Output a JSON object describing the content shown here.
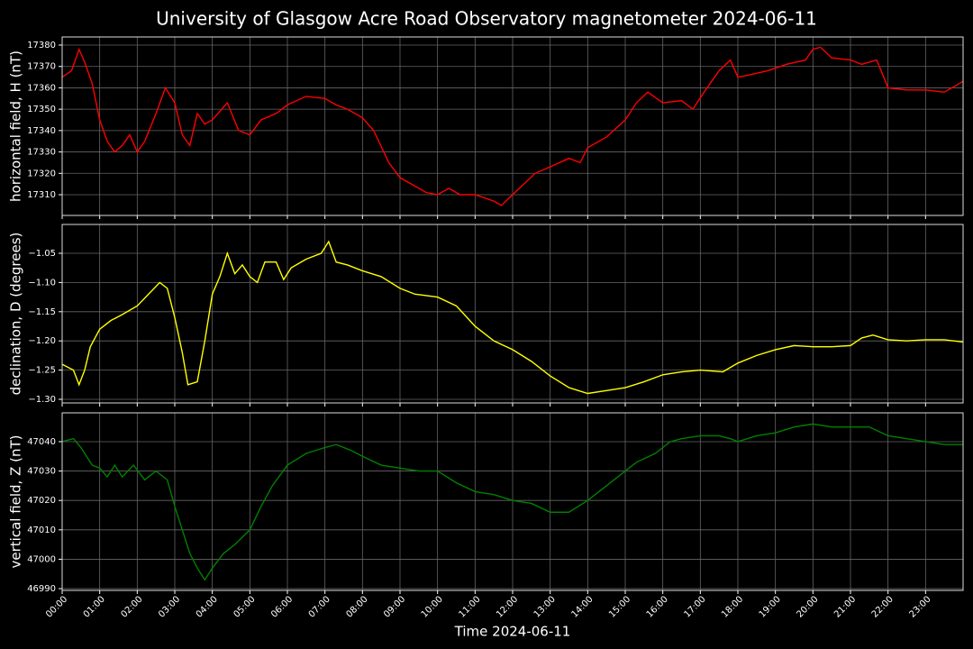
{
  "chart_data": [
    {
      "type": "line",
      "title": "University of Glasgow Acre Road Observatory magnetometer 2024-06-11",
      "ylabel": "horizontal field, H (nT)",
      "color": "#ff0000",
      "x": [
        0,
        0.25,
        0.45,
        0.6,
        0.8,
        1,
        1.2,
        1.4,
        1.6,
        1.8,
        2,
        2.2,
        2.5,
        2.75,
        3,
        3.2,
        3.4,
        3.6,
        3.8,
        4,
        4.4,
        4.7,
        5,
        5.3,
        5.7,
        6,
        6.5,
        7,
        7.3,
        7.6,
        8,
        8.3,
        8.7,
        9,
        9.3,
        9.7,
        10,
        10.3,
        10.6,
        11,
        11.5,
        11.7,
        12,
        12.3,
        12.6,
        13,
        13.5,
        13.8,
        14,
        14.5,
        15,
        15.3,
        15.6,
        16,
        16.5,
        16.8,
        17.1,
        17.5,
        17.8,
        18,
        18.3,
        18.8,
        19.3,
        19.8,
        20,
        20.2,
        20.5,
        21,
        21.3,
        21.7,
        22,
        22.5,
        23,
        23.5,
        24
      ],
      "values": [
        17365,
        17368,
        17378,
        17372,
        17362,
        17345,
        17335,
        17330,
        17333,
        17338,
        17330,
        17335,
        17348,
        17360,
        17353,
        17338,
        17333,
        17348,
        17343,
        17345,
        17353,
        17340,
        17338,
        17345,
        17348,
        17352,
        17356,
        17355,
        17352,
        17350,
        17346,
        17340,
        17325,
        17318,
        17315,
        17311,
        17310,
        17313,
        17310,
        17310,
        17307,
        17305,
        17310,
        17315,
        17320,
        17323,
        17327,
        17325,
        17332,
        17337,
        17345,
        17353,
        17358,
        17353,
        17354,
        17350,
        17358,
        17368,
        17373,
        17365,
        17366,
        17368,
        17371,
        17373,
        17378,
        17379,
        17374,
        17373,
        17371,
        17373,
        17360,
        17359,
        17359,
        17358,
        17363
      ],
      "xlim": [
        0,
        24
      ],
      "ylim": [
        17300.3,
        17383.8
      ],
      "yticks": [
        17310,
        17320,
        17330,
        17340,
        17350,
        17360,
        17370,
        17380
      ],
      "xticks": [
        {
          "value": 0,
          "label": "00:00"
        },
        {
          "value": 1,
          "label": "01:00"
        },
        {
          "value": 2,
          "label": "02:00"
        },
        {
          "value": 3,
          "label": "03:00"
        },
        {
          "value": 4,
          "label": "04:00"
        },
        {
          "value": 5,
          "label": "05:00"
        },
        {
          "value": 6,
          "label": "06:00"
        },
        {
          "value": 7,
          "label": "07:00"
        },
        {
          "value": 8,
          "label": "08:00"
        },
        {
          "value": 9,
          "label": "09:00"
        },
        {
          "value": 10,
          "label": "10:00"
        },
        {
          "value": 11,
          "label": "11:00"
        },
        {
          "value": 12,
          "label": "12:00"
        },
        {
          "value": 13,
          "label": "13:00"
        },
        {
          "value": 14,
          "label": "14:00"
        },
        {
          "value": 15,
          "label": "15:00"
        },
        {
          "value": 16,
          "label": "16:00"
        },
        {
          "value": 17,
          "label": "17:00"
        },
        {
          "value": 18,
          "label": "18:00"
        },
        {
          "value": 19,
          "label": "19:00"
        },
        {
          "value": 20,
          "label": "20:00"
        },
        {
          "value": 21,
          "label": "21:00"
        },
        {
          "value": 22,
          "label": "22:00"
        },
        {
          "value": 23,
          "label": "23:00"
        }
      ],
      "grid": true
    },
    {
      "type": "line",
      "ylabel": "declination, D (degrees)",
      "color": "#ffff00",
      "x": [
        0,
        0.3,
        0.45,
        0.6,
        0.75,
        1,
        1.3,
        1.6,
        2,
        2.3,
        2.6,
        2.8,
        3,
        3.2,
        3.35,
        3.6,
        3.8,
        4,
        4.2,
        4.4,
        4.6,
        4.8,
        5,
        5.2,
        5.4,
        5.7,
        5.9,
        6.1,
        6.5,
        6.9,
        7.1,
        7.3,
        7.6,
        8,
        8.5,
        9,
        9.4,
        10,
        10.5,
        11,
        11.5,
        12,
        12.5,
        13,
        13.5,
        14,
        14.5,
        15,
        15.5,
        16,
        16.5,
        17,
        17.6,
        18,
        18.5,
        19,
        19.5,
        20,
        20.5,
        21,
        21.3,
        21.6,
        22,
        22.5,
        23,
        23.5,
        24
      ],
      "values": [
        -1.24,
        -1.25,
        -1.275,
        -1.25,
        -1.21,
        -1.18,
        -1.165,
        -1.155,
        -1.14,
        -1.12,
        -1.1,
        -1.11,
        -1.16,
        -1.22,
        -1.275,
        -1.27,
        -1.2,
        -1.12,
        -1.09,
        -1.05,
        -1.085,
        -1.07,
        -1.09,
        -1.1,
        -1.065,
        -1.065,
        -1.095,
        -1.075,
        -1.06,
        -1.05,
        -1.03,
        -1.065,
        -1.07,
        -1.08,
        -1.09,
        -1.11,
        -1.12,
        -1.125,
        -1.14,
        -1.175,
        -1.2,
        -1.215,
        -1.235,
        -1.26,
        -1.28,
        -1.29,
        -1.285,
        -1.28,
        -1.27,
        -1.258,
        -1.253,
        -1.25,
        -1.253,
        -1.238,
        -1.225,
        -1.215,
        -1.208,
        -1.21,
        -1.21,
        -1.208,
        -1.195,
        -1.19,
        -1.198,
        -1.2,
        -1.198,
        -1.198,
        -1.202
      ],
      "xlim": [
        0,
        24
      ],
      "ylim": [
        -1.3062,
        -1.0006
      ],
      "yticks": [
        {
          "value": -1.3,
          "label": "−1.30"
        },
        {
          "value": -1.25,
          "label": "−1.25"
        },
        {
          "value": -1.2,
          "label": "−1.20"
        },
        {
          "value": -1.15,
          "label": "−1.15"
        },
        {
          "value": -1.1,
          "label": "−1.10"
        },
        {
          "value": -1.05,
          "label": "−1.05"
        }
      ],
      "xticks": [
        0,
        1,
        2,
        3,
        4,
        5,
        6,
        7,
        8,
        9,
        10,
        11,
        12,
        13,
        14,
        15,
        16,
        17,
        18,
        19,
        20,
        21,
        22,
        23
      ],
      "grid": true
    },
    {
      "type": "line",
      "ylabel": "vertical field, Z (nT)",
      "xlabel": "Time 2024-06-11",
      "color": "#008000",
      "x": [
        0,
        0.3,
        0.5,
        0.8,
        1,
        1.2,
        1.4,
        1.6,
        1.9,
        2.2,
        2.5,
        2.8,
        3,
        3.2,
        3.4,
        3.6,
        3.8,
        4,
        4.3,
        4.6,
        5,
        5.3,
        5.6,
        6,
        6.5,
        7,
        7.3,
        7.7,
        8,
        8.5,
        9,
        9.5,
        10,
        10.5,
        11,
        11.5,
        12,
        12.5,
        13,
        13.5,
        14,
        14.5,
        15,
        15.3,
        15.8,
        16.2,
        16.5,
        17,
        17.5,
        17.8,
        18,
        18.5,
        19,
        19.5,
        20,
        20.5,
        21,
        21.5,
        22,
        22.5,
        23,
        23.5,
        24
      ],
      "values": [
        47040,
        47041,
        47038,
        47032,
        47031,
        47028,
        47032,
        47028,
        47032,
        47027,
        47030,
        47027,
        47018,
        47010,
        47002,
        46997,
        46993,
        46997,
        47002,
        47005,
        47010,
        47018,
        47025,
        47032,
        47036,
        47038,
        47039,
        47037,
        47035,
        47032,
        47031,
        47030,
        47030,
        47026,
        47023,
        47022,
        47020,
        47019,
        47016,
        47016,
        47020,
        47025,
        47030,
        47033,
        47036,
        47040,
        47041,
        47042,
        47042,
        47041,
        47040,
        47042,
        47043,
        47045,
        47046,
        47045,
        47045,
        47045,
        47042,
        47041,
        47040,
        47039,
        47039
      ],
      "xlim": [
        0,
        24
      ],
      "ylim": [
        46989.4,
        47049.8
      ],
      "yticks": [
        46990,
        47000,
        47010,
        47020,
        47030,
        47040
      ],
      "xticks": [
        {
          "value": 0,
          "label": "00:00"
        },
        {
          "value": 1,
          "label": "01:00"
        },
        {
          "value": 2,
          "label": "02:00"
        },
        {
          "value": 3,
          "label": "03:00"
        },
        {
          "value": 4,
          "label": "04:00"
        },
        {
          "value": 5,
          "label": "05:00"
        },
        {
          "value": 6,
          "label": "06:00"
        },
        {
          "value": 7,
          "label": "07:00"
        },
        {
          "value": 8,
          "label": "08:00"
        },
        {
          "value": 9,
          "label": "09:00"
        },
        {
          "value": 10,
          "label": "10:00"
        },
        {
          "value": 11,
          "label": "11:00"
        },
        {
          "value": 12,
          "label": "12:00"
        },
        {
          "value": 13,
          "label": "13:00"
        },
        {
          "value": 14,
          "label": "14:00"
        },
        {
          "value": 15,
          "label": "15:00"
        },
        {
          "value": 16,
          "label": "16:00"
        },
        {
          "value": 17,
          "label": "17:00"
        },
        {
          "value": 18,
          "label": "18:00"
        },
        {
          "value": 19,
          "label": "19:00"
        },
        {
          "value": 20,
          "label": "20:00"
        },
        {
          "value": 21,
          "label": "21:00"
        },
        {
          "value": 22,
          "label": "22:00"
        },
        {
          "value": 23,
          "label": "23:00"
        }
      ],
      "grid": true
    }
  ]
}
